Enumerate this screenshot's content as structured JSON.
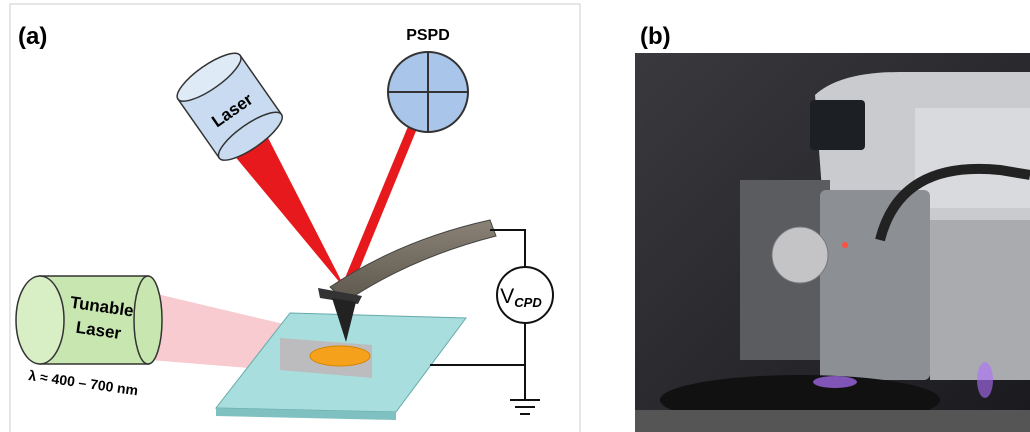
{
  "panel_a": {
    "label": "(a)",
    "pspd_label": "PSPD",
    "laser_label": "Laser",
    "tunable_laser_label": [
      "Tunable",
      "Laser"
    ],
    "voltage_label": {
      "symbol": "V",
      "subscript": "CPD"
    },
    "wavelength_label": "λ ≈ 400 – 700 nm"
  },
  "panel_b": {
    "label": "(b)"
  }
}
